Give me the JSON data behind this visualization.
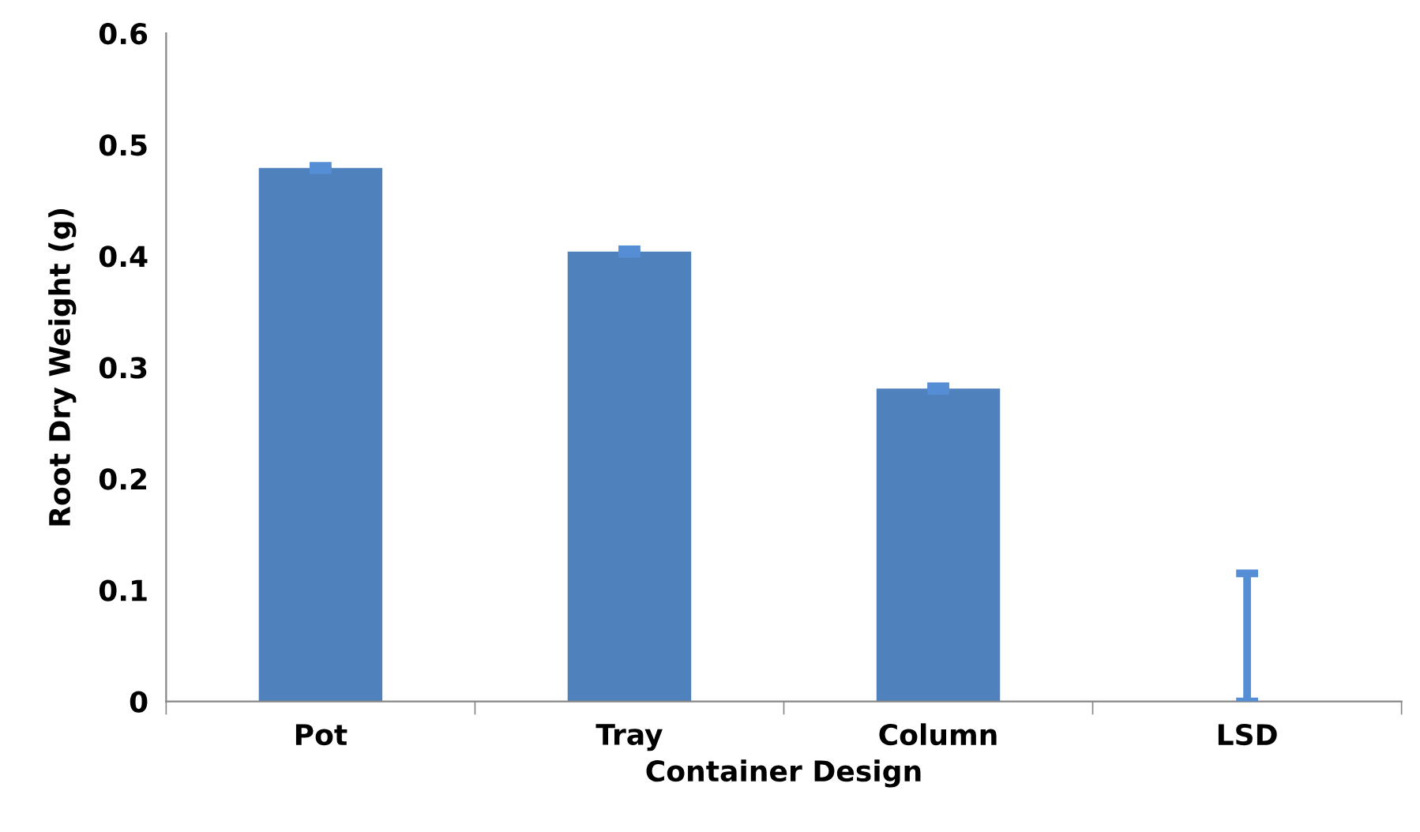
{
  "chart_data": {
    "type": "bar",
    "xlabel": "Container Design",
    "ylabel": "Root Dry Weight (g)",
    "categories": [
      "Pot",
      "Tray",
      "Column",
      "LSD"
    ],
    "values": [
      0.479,
      0.404,
      0.281,
      0
    ],
    "errors": [
      0.002,
      0.002,
      0.002,
      [
        0,
        0.115
      ]
    ],
    "colors": [
      "#4f81bd",
      "#4f81bd",
      "#4f81bd",
      "#558ed5"
    ],
    "ylim": [
      0,
      0.6
    ],
    "yticks": [
      0,
      0.1,
      0.2,
      0.3,
      0.4,
      0.5,
      0.6
    ],
    "grid": false,
    "legend": false
  }
}
